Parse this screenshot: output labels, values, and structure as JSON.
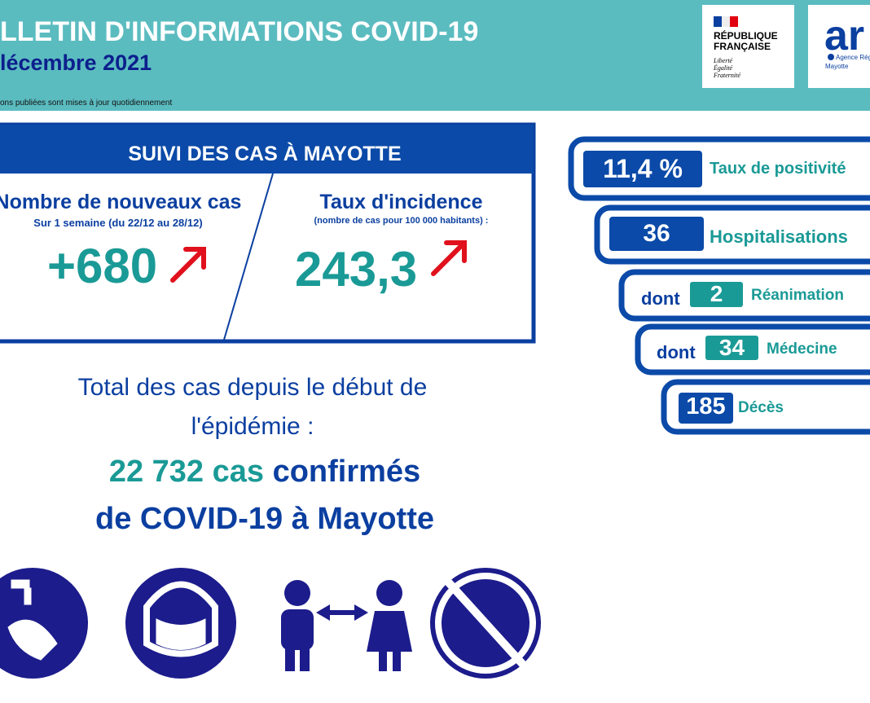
{
  "header": {
    "title": "LLETIN D'INFORMATIONS COVID-19",
    "date": "lécembre 2021",
    "note": "ons publiées sont mises à jour quotidiennement",
    "logo_republique": {
      "name": "RÉPUBLIQUE FRANÇAISE",
      "motto": "Liberté Égalité Fraternité"
    },
    "logo_ars": {
      "name": "ar",
      "agency": "Agence Régiona",
      "region": "Mayotte"
    }
  },
  "suivi": {
    "title": "SUIVI DES CAS À MAYOTTE",
    "nouveaux_cas": {
      "label": "Nombre de nouveaux cas",
      "period": "Sur 1 semaine (du 22/12 au 28/12)",
      "value": "+680"
    },
    "incidence": {
      "label": "Taux d'incidence",
      "unit": "(nombre de cas pour 100 000 habitants) :",
      "value": "243,3"
    }
  },
  "total": {
    "intro": "Total des cas depuis le début de l'épidémie :",
    "count": "22 732 cas",
    "confirmed": "confirmés",
    "place": "de COVID-19 à Mayotte"
  },
  "indicators": [
    {
      "value": "11,4 %",
      "label": "Taux de positivité"
    },
    {
      "value": "36",
      "label": "Hospitalisations"
    },
    {
      "prefix": "dont",
      "value": "2",
      "label": "Réanimation"
    },
    {
      "prefix": "dont",
      "value": "34",
      "label": "Médecine"
    },
    {
      "value": "185",
      "label": "Décès"
    }
  ]
}
